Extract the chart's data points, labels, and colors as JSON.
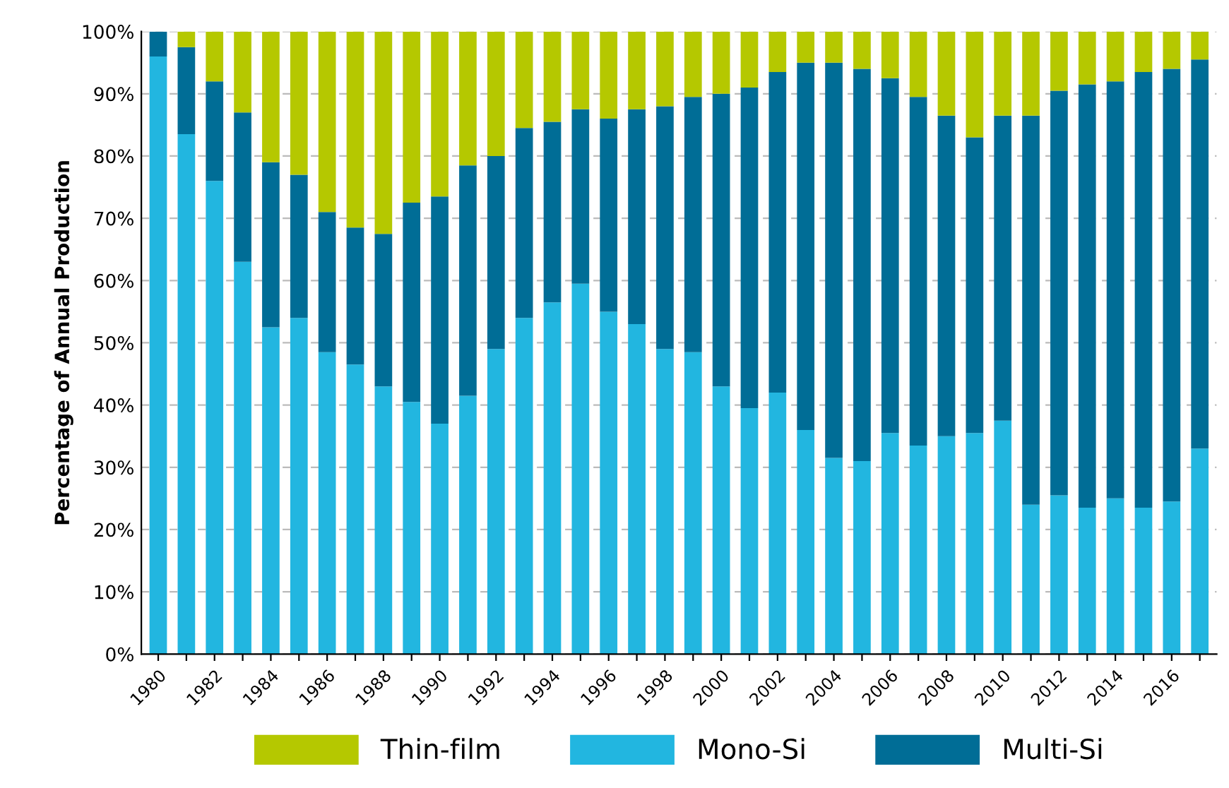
{
  "chart_data": {
    "type": "bar",
    "stacked": true,
    "ylabel": "Percentage of Annual Production",
    "categories": [
      "1980",
      null,
      "1982",
      null,
      "1984",
      null,
      "1986",
      null,
      "1988",
      null,
      "1990",
      null,
      "1992",
      null,
      "1994",
      null,
      "1996",
      null,
      "1998",
      null,
      "2000",
      null,
      "2002",
      null,
      "2004",
      null,
      "2006",
      null,
      "2008",
      null,
      "2010",
      null,
      "2012",
      null,
      "2014",
      null,
      "2016",
      null
    ],
    "series": [
      {
        "name": "Mono-Si",
        "color": "#22b6e0",
        "values": [
          96,
          83.5,
          76,
          63,
          52.5,
          54,
          48.5,
          46.5,
          43,
          40.5,
          37,
          41.5,
          49,
          54,
          56.5,
          59.5,
          55,
          53,
          49,
          48.5,
          43,
          39.5,
          42,
          36,
          31.5,
          31,
          35.5,
          33.5,
          35,
          35.5,
          37.5,
          24,
          25.5,
          23.5,
          25,
          23.5,
          24.5,
          33
        ]
      },
      {
        "name": "Multi-Si",
        "color": "#006d96",
        "values": [
          4,
          14,
          16,
          24,
          26.5,
          23,
          22.5,
          22,
          24.5,
          32,
          36.5,
          37,
          31,
          30.5,
          29,
          28,
          31,
          34.5,
          39,
          41,
          47,
          51.5,
          51.5,
          59,
          63.5,
          63,
          57,
          56,
          51.5,
          47.5,
          49,
          62.5,
          65,
          68,
          67,
          70,
          69.5,
          62.5
        ]
      },
      {
        "name": "Thin-film",
        "color": "#b5c800",
        "values": [
          0,
          2.5,
          8,
          13,
          21,
          23,
          29,
          31.5,
          32.5,
          27.5,
          26.5,
          21.5,
          20,
          15.5,
          14.5,
          12.5,
          14,
          12.5,
          12,
          10.5,
          10,
          9,
          6.5,
          5,
          5,
          6,
          7.5,
          10.5,
          13.5,
          17,
          13.5,
          13.5,
          9.5,
          8.5,
          8,
          6.5,
          6,
          4.5
        ]
      }
    ],
    "ylim": [
      0,
      100
    ],
    "yticks": [
      {
        "value": 0,
        "label": "0%"
      },
      {
        "value": 10,
        "label": "10%"
      },
      {
        "value": 20,
        "label": "20%"
      },
      {
        "value": 30,
        "label": "30%"
      },
      {
        "value": 40,
        "label": "40%"
      },
      {
        "value": 50,
        "label": "50%"
      },
      {
        "value": 60,
        "label": "60%"
      },
      {
        "value": 70,
        "label": "70%"
      },
      {
        "value": 80,
        "label": "80%"
      },
      {
        "value": 90,
        "label": "90%"
      },
      {
        "value": 100,
        "label": "100%"
      }
    ],
    "grid": "y",
    "legend": "bottom"
  }
}
